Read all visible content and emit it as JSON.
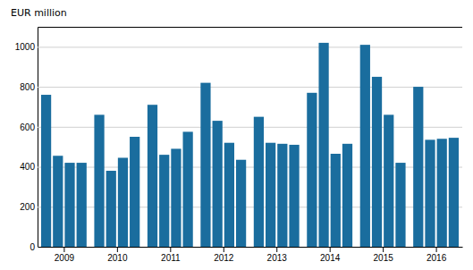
{
  "chart_data": {
    "type": "bar",
    "y_label": "EUR million",
    "categories": [
      "2009",
      null,
      null,
      null,
      "2010",
      null,
      null,
      null,
      "2011",
      null,
      null,
      null,
      "2012",
      null,
      null,
      null,
      "2013",
      null,
      null,
      null,
      "2014",
      null,
      null,
      null,
      "2015",
      null,
      null,
      null,
      "2016",
      null,
      null,
      null
    ],
    "values": [
      760,
      455,
      420,
      420,
      660,
      380,
      445,
      550,
      710,
      460,
      490,
      575,
      820,
      630,
      520,
      435,
      650,
      520,
      515,
      510,
      770,
      1020,
      465,
      515,
      1010,
      850,
      660,
      420,
      800,
      535,
      540,
      545
    ],
    "color": "#1a6d9e",
    "ylim": [
      0,
      1100
    ],
    "yticks": [
      0,
      200,
      400,
      600,
      800,
      1000
    ],
    "grid": true
  }
}
